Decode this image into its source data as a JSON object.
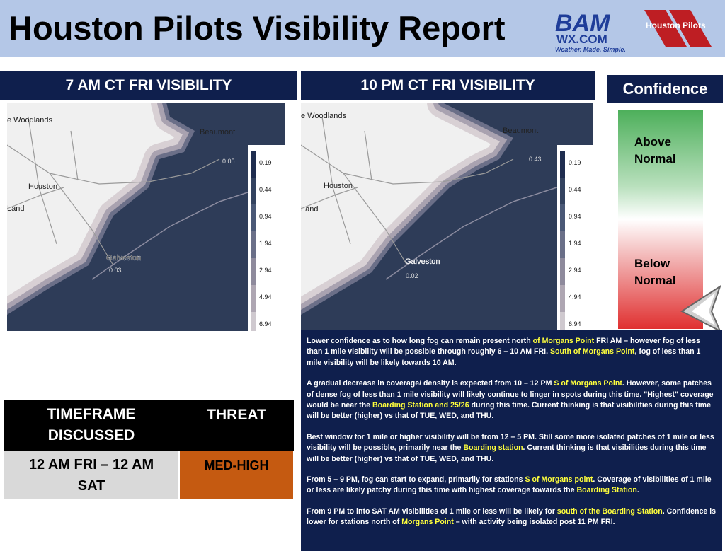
{
  "header": {
    "title": "Houston Pilots Visibility Report"
  },
  "logos": {
    "bam": "BAM",
    "wx": "WX.COM",
    "tagline": "Weather. Made. Simple.",
    "pilots": "Houston Pilots"
  },
  "maps": [
    {
      "title": "7 AM CT FRI VISIBILITY",
      "places": [
        "e Woodlands",
        "Beaumont",
        "Houston",
        "Land",
        "Galveston"
      ],
      "readings": [
        "0.05",
        "0.03"
      ],
      "legend": [
        "0.19",
        "0.44",
        "0.94",
        "1.94",
        "2.94",
        "4.94",
        "6.94"
      ]
    },
    {
      "title": "10 PM CT FRI VISIBILITY",
      "places": [
        "e Woodlands",
        "Beaumont",
        "Houston",
        "Land",
        "Galveston"
      ],
      "readings": [
        "0.43",
        "0.02"
      ],
      "legend": [
        "0.19",
        "0.44",
        "0.94",
        "1.94",
        "2.94",
        "4.94",
        "6.94"
      ]
    }
  ],
  "confidence": {
    "title": "Confidence",
    "above": "Above Normal",
    "below": "Below Normal"
  },
  "table": {
    "headers": [
      "TIMEFRAME DISCUSSED",
      "THREAT"
    ],
    "rows": [
      [
        "12 AM FRI – 12 AM SAT",
        "MED-HIGH"
      ]
    ]
  },
  "discussion": [
    [
      {
        "text": "Lower confidence as to how long fog can remain present north ",
        "highlight": false
      },
      {
        "text": "of Morgans Point",
        "highlight": true
      },
      {
        "text": " FRI AM – however fog of less than 1 mile visibility will be possible through roughly 6 – 10 AM FRI.  ",
        "highlight": false
      },
      {
        "text": "South of Morgans Point",
        "highlight": true
      },
      {
        "text": ", fog of less than 1 mile visibility will be likely towards 10 AM.",
        "highlight": false
      }
    ],
    [
      {
        "text": "A gradual decrease in coverage/ density is expected from 10 – 12 PM ",
        "highlight": false
      },
      {
        "text": "S of Morgans Point",
        "highlight": true
      },
      {
        "text": ".  However, some patches of dense fog of less than 1 mile visibility will likely continue to linger in spots during this time.  \"Highest\" coverage would be near the ",
        "highlight": false
      },
      {
        "text": "Boarding Station and 25/26",
        "highlight": true
      },
      {
        "text": " during this time.   Current thinking is that visibilities during this time will be better (higher) vs that of TUE, WED, and THU.",
        "highlight": false
      }
    ],
    [
      {
        "text": "Best window for 1 mile or higher visibility will be from 12 – 5 PM.  Still some more isolated patches of 1 mile or less visibility will be possible, primarily near the ",
        "highlight": false
      },
      {
        "text": "Boarding station",
        "highlight": true
      },
      {
        "text": ".  Current thinking is that visibilities during this time will be better (higher) vs that of TUE, WED, and THU.",
        "highlight": false
      }
    ],
    [
      {
        "text": "From 5 – 9 PM, fog can start to expand, primarily for stations ",
        "highlight": false
      },
      {
        "text": "S of Morgans point",
        "highlight": true
      },
      {
        "text": ".  Coverage of visibilities of 1 mile or less are likely patchy during this time with highest coverage towards the ",
        "highlight": false
      },
      {
        "text": "Boarding Station",
        "highlight": true
      },
      {
        "text": ".",
        "highlight": false
      }
    ],
    [
      {
        "text": "From 9 PM to into SAT AM visibilities of 1 mile or less will be likely for ",
        "highlight": false
      },
      {
        "text": "south of the Boarding Station",
        "highlight": true
      },
      {
        "text": ". Confidence is lower for stations north of ",
        "highlight": false
      },
      {
        "text": "Morgans Point",
        "highlight": true
      },
      {
        "text": " – with activity being isolated post 11 PM FRI.",
        "highlight": false
      }
    ]
  ]
}
